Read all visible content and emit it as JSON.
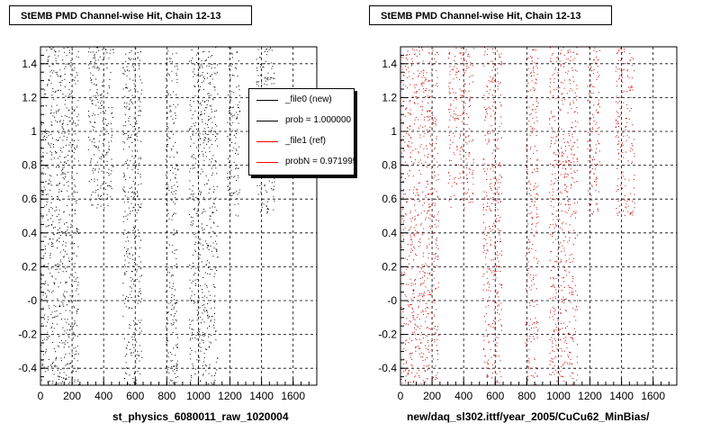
{
  "chart_data": [
    {
      "type": "scatter",
      "title": "StEMB PMD Channel-wise Hit, Chain 12-13",
      "xlabel": "st_physics_6080011_raw_1020004",
      "ylabel": "",
      "xlim": [
        0,
        1750
      ],
      "ylim": [
        -0.5,
        1.5
      ],
      "x_ticks": [
        0,
        200,
        400,
        600,
        800,
        1000,
        1200,
        1400,
        1600
      ],
      "y_ticks": [
        -0.4,
        -0.2,
        0,
        0.2,
        0.4,
        0.6,
        0.8,
        1,
        1.2,
        1.4
      ],
      "y_tick_labels": [
        "-0.4",
        "-0.2",
        "-0",
        "0.2",
        "0.4",
        "0.6",
        "0.8",
        "1",
        "1.2",
        "1.4"
      ],
      "grid": true,
      "marker_color": "#000000",
      "bands": [
        {
          "x": [
            0,
            240
          ],
          "y": [
            -0.5,
            1.5
          ]
        },
        {
          "x": [
            300,
            460
          ],
          "y": [
            0.55,
            1.5
          ]
        },
        {
          "x": [
            520,
            640
          ],
          "y": [
            -0.5,
            1.5
          ]
        },
        {
          "x": [
            790,
            870
          ],
          "y": [
            -0.5,
            1.5
          ]
        },
        {
          "x": [
            940,
            1120
          ],
          "y": [
            -0.5,
            1.5
          ]
        },
        {
          "x": [
            1180,
            1260
          ],
          "y": [
            0.5,
            1.5
          ]
        },
        {
          "x": [
            1360,
            1480
          ],
          "y": [
            0.5,
            1.5
          ]
        }
      ],
      "legend": {
        "placement": "top-right",
        "entries": [
          {
            "label": "_file0 (new)",
            "color": "#000000"
          },
          {
            "label": "prob = 1.000000",
            "color": "#000000"
          },
          {
            "label": "_file1 (ref)",
            "color": "#ff0000"
          },
          {
            "label": "probN = 0.971995",
            "color": "#ff0000"
          }
        ]
      }
    },
    {
      "type": "scatter",
      "title": "StEMB PMD Channel-wise Hit, Chain 12-13",
      "xlabel": "new/daq_sl302.ittf/year_2005/CuCu62_MinBias/",
      "ylabel": "",
      "xlim": [
        0,
        1750
      ],
      "ylim": [
        -0.5,
        1.5
      ],
      "x_ticks": [
        0,
        200,
        400,
        600,
        800,
        1000,
        1200,
        1400,
        1600
      ],
      "y_ticks": [
        -0.4,
        -0.2,
        0,
        0.2,
        0.4,
        0.6,
        0.8,
        1,
        1.2,
        1.4
      ],
      "y_tick_labels": [
        "-0.4",
        "-0.2",
        "-0",
        "0.2",
        "0.4",
        "0.6",
        "0.8",
        "1",
        "1.2",
        "1.4"
      ],
      "grid": true,
      "marker_color": "#cc0000",
      "bands": [
        {
          "x": [
            0,
            240
          ],
          "y": [
            -0.5,
            1.5
          ]
        },
        {
          "x": [
            300,
            460
          ],
          "y": [
            0.55,
            1.5
          ]
        },
        {
          "x": [
            520,
            640
          ],
          "y": [
            -0.5,
            1.5
          ]
        },
        {
          "x": [
            790,
            870
          ],
          "y": [
            -0.5,
            1.5
          ]
        },
        {
          "x": [
            940,
            1120
          ],
          "y": [
            -0.5,
            1.5
          ]
        },
        {
          "x": [
            1180,
            1260
          ],
          "y": [
            0.5,
            1.5
          ]
        },
        {
          "x": [
            1360,
            1480
          ],
          "y": [
            0.5,
            1.5
          ]
        }
      ]
    }
  ]
}
